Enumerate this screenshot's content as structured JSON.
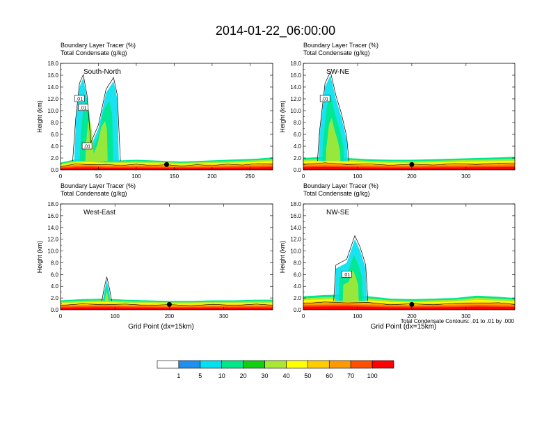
{
  "title": "2014-01-22_06:00:00",
  "bottom_note": "Total Condensate Contours: .01 to .01 by .000",
  "colorbar": {
    "colors": [
      "#ffffff",
      "#1f8ff0",
      "#00e0f0",
      "#00e88a",
      "#10d010",
      "#a8e832",
      "#ffff00",
      "#ffcc00",
      "#ff9900",
      "#ff5000",
      "#ff0000"
    ],
    "labels": [
      "1",
      "5",
      "10",
      "20",
      "30",
      "40",
      "50",
      "60",
      "70",
      "100"
    ]
  },
  "chart_data": [
    {
      "type": "contour",
      "title": "South-North",
      "subtitle_lines": [
        "Boundary Layer Tracer    (%)",
        "Total Condensate    (g/kg)"
      ],
      "ylabel": "Height (km)",
      "xlabel": "",
      "xlim": [
        0,
        280
      ],
      "ylim": [
        0,
        18
      ],
      "xticks": [
        0,
        50,
        100,
        150,
        200,
        250
      ],
      "yticks": [
        "0.0",
        "2.0",
        "4.0",
        "6.0",
        "8.0",
        "10.0",
        "12.0",
        "14.0",
        "16.0",
        "18.0"
      ],
      "contour_labels": [
        ".01",
        ".01",
        ".01"
      ],
      "marker_x": 140,
      "series": [
        {
          "name": "boundary_layer_top_km",
          "x": [
            0,
            20,
            40,
            60,
            80,
            100,
            120,
            140,
            160,
            180,
            200,
            220,
            240,
            260,
            280
          ],
          "values": [
            1.2,
            1.8,
            1.9,
            1.6,
            1.6,
            1.7,
            1.6,
            1.5,
            1.4,
            1.5,
            1.6,
            1.7,
            1.8,
            1.9,
            2.1
          ]
        },
        {
          "name": "plume_top_km",
          "x": [
            20,
            25,
            30,
            35,
            40,
            50,
            60,
            70,
            75
          ],
          "values": [
            8,
            14,
            15.5,
            12,
            4,
            7,
            13,
            15,
            12
          ]
        }
      ]
    },
    {
      "type": "contour",
      "title": "SW-NE",
      "subtitle_lines": [
        "Boundary Layer Tracer    (%)",
        "Total Condensate    (g/kg)"
      ],
      "ylabel": "Height (km)",
      "xlabel": "",
      "xlim": [
        0,
        390
      ],
      "ylim": [
        0,
        18
      ],
      "xticks": [
        0,
        100,
        200,
        300
      ],
      "yticks": [
        "0.0",
        "2.0",
        "4.0",
        "6.0",
        "8.0",
        "10.0",
        "12.0",
        "14.0",
        "16.0",
        "18.0"
      ],
      "contour_labels": [
        ".01"
      ],
      "marker_x": 200,
      "series": [
        {
          "name": "boundary_layer_top_km",
          "x": [
            0,
            40,
            80,
            120,
            160,
            200,
            240,
            280,
            320,
            360,
            390
          ],
          "values": [
            2.0,
            2.2,
            2.0,
            1.8,
            1.7,
            1.7,
            1.8,
            1.9,
            2.0,
            2.1,
            2.2
          ]
        },
        {
          "name": "plume_top_km",
          "x": [
            30,
            40,
            50,
            60,
            70,
            80
          ],
          "values": [
            6,
            14,
            16,
            12,
            9,
            5
          ]
        }
      ]
    },
    {
      "type": "contour",
      "title": "West-East",
      "subtitle_lines": [
        "Boundary Layer Tracer    (%)",
        "Total Condensate    (g/kg)"
      ],
      "ylabel": "Height (km)",
      "xlabel": "Grid Point (dx=15km)",
      "xlim": [
        0,
        390
      ],
      "ylim": [
        0,
        18
      ],
      "xticks": [
        0,
        100,
        200,
        300
      ],
      "yticks": [
        "0.0",
        "2.0",
        "4.0",
        "6.0",
        "8.0",
        "10.0",
        "12.0",
        "14.0",
        "16.0",
        "18.0"
      ],
      "contour_labels": [],
      "marker_x": 200,
      "series": [
        {
          "name": "boundary_layer_top_km",
          "x": [
            0,
            40,
            80,
            120,
            160,
            200,
            240,
            280,
            320,
            360,
            390
          ],
          "values": [
            1.6,
            1.8,
            1.9,
            1.7,
            1.6,
            1.5,
            1.5,
            1.6,
            1.6,
            1.7,
            1.7
          ]
        },
        {
          "name": "plume_top_km",
          "x": [
            80,
            85,
            90
          ],
          "values": [
            3,
            5,
            3
          ]
        }
      ]
    },
    {
      "type": "contour",
      "title": "NW-SE",
      "subtitle_lines": [
        "Boundary Layer Tracer    (%)",
        "Total Condensate    (g/kg)"
      ],
      "ylabel": "Height (km)",
      "xlabel": "Grid Point (dx=15km)",
      "xlim": [
        0,
        390
      ],
      "ylim": [
        0,
        18
      ],
      "xticks": [
        0,
        100,
        200,
        300
      ],
      "yticks": [
        "0.0",
        "2.0",
        "4.0",
        "6.0",
        "8.0",
        "10.0",
        "12.0",
        "14.0",
        "16.0",
        "18.0"
      ],
      "contour_labels": [
        ".01"
      ],
      "marker_x": 200,
      "series": [
        {
          "name": "boundary_layer_top_km",
          "x": [
            0,
            40,
            80,
            120,
            160,
            200,
            240,
            280,
            320,
            360,
            390
          ],
          "values": [
            2.3,
            2.5,
            2.6,
            2.3,
            1.9,
            1.8,
            1.9,
            2.0,
            2.4,
            2.2,
            2.0
          ]
        },
        {
          "name": "plume_top_km",
          "x": [
            60,
            80,
            95,
            105,
            115
          ],
          "values": [
            7,
            8,
            12,
            10,
            7
          ]
        }
      ]
    }
  ]
}
